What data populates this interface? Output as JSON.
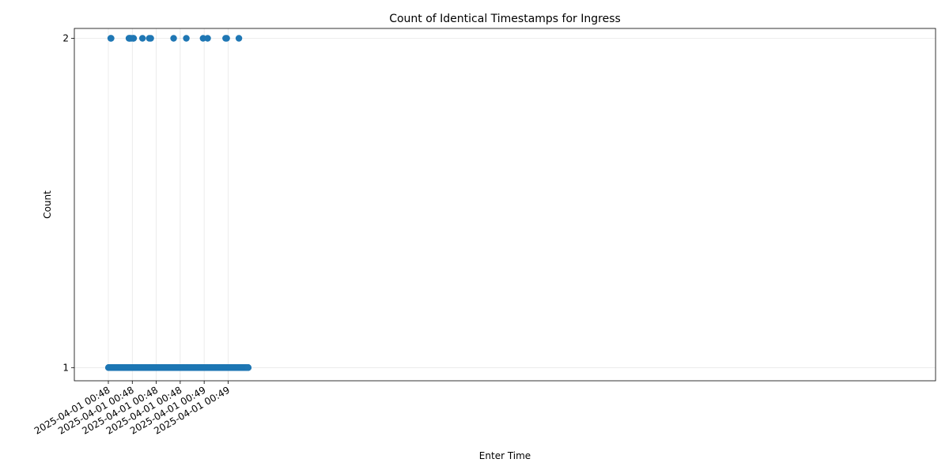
{
  "chart_data": {
    "type": "scatter",
    "title": "Count of Identical Timestamps for Ingress",
    "xlabel": "Enter Time",
    "ylabel": "Count",
    "x_axis_kind": "datetime",
    "x_tick_labels": [
      "2025-04-01 00:48",
      "2025-04-01 00:48",
      "2025-04-01 00:48",
      "2025-04-01 00:48",
      "2025-04-01 00:49",
      "2025-04-01 00:49"
    ],
    "y_ticks": [
      1,
      2
    ],
    "y_tick_labels": [
      "1",
      "2"
    ],
    "ylim": [
      0.96,
      2.03
    ],
    "grid": true,
    "marker_color": "#1f77b4",
    "baseline": {
      "count": 1,
      "x_start": "2025-04-01T00:48:00.1",
      "x_end": "2025-04-01T00:49:56.8",
      "point_step_seconds": 0.1
    },
    "series": [
      {
        "values": [
          {
            "x": "2025-04-01T00:48:02.0",
            "y": 2
          },
          {
            "x": "2025-04-01T00:48:02.3",
            "y": 2
          },
          {
            "x": "2025-04-01T00:48:17.2",
            "y": 2
          },
          {
            "x": "2025-04-01T00:48:17.5",
            "y": 2
          },
          {
            "x": "2025-04-01T00:48:18.1",
            "y": 2
          },
          {
            "x": "2025-04-01T00:48:19.1",
            "y": 2
          },
          {
            "x": "2025-04-01T00:48:20.7",
            "y": 2
          },
          {
            "x": "2025-04-01T00:48:21.1",
            "y": 2
          },
          {
            "x": "2025-04-01T00:48:28.5",
            "y": 2
          },
          {
            "x": "2025-04-01T00:48:34.2",
            "y": 2
          },
          {
            "x": "2025-04-01T00:48:35.4",
            "y": 2
          },
          {
            "x": "2025-04-01T00:48:54.5",
            "y": 2
          },
          {
            "x": "2025-04-01T00:49:05.1",
            "y": 2
          },
          {
            "x": "2025-04-01T00:49:19.1",
            "y": 2
          },
          {
            "x": "2025-04-01T00:49:22.9",
            "y": 2
          },
          {
            "x": "2025-04-01T00:49:37.9",
            "y": 2
          },
          {
            "x": "2025-04-01T00:49:38.8",
            "y": 2
          },
          {
            "x": "2025-04-01T00:49:49.0",
            "y": 2
          }
        ]
      }
    ]
  }
}
